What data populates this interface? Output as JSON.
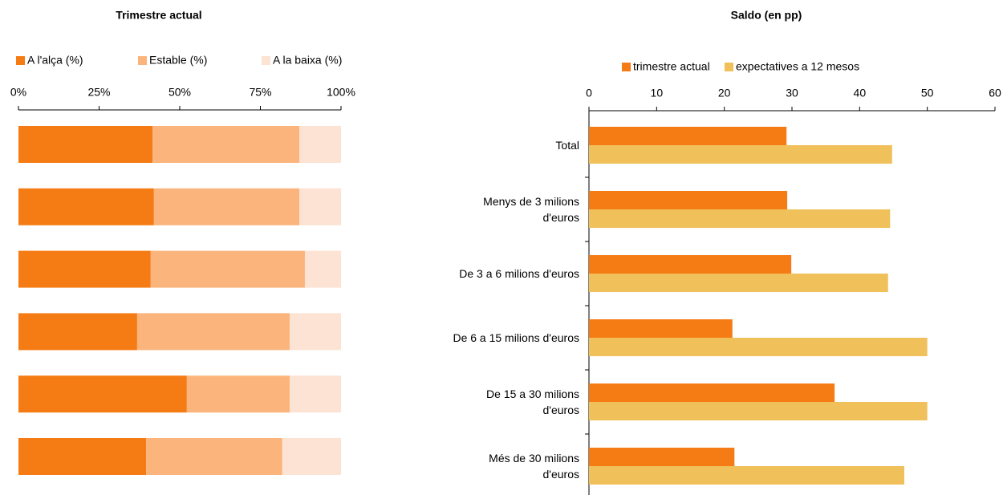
{
  "chart_data": [
    {
      "type": "stacked_barh",
      "title": "Trimestre actual",
      "categories": [
        null,
        null,
        null,
        null,
        null,
        null
      ],
      "series": [
        {
          "name": "A l'alça (%)",
          "color": "#f57c14",
          "values": [
            41.6,
            42.0,
            41.0,
            36.8,
            52.2,
            39.6
          ]
        },
        {
          "name": "Estable (%)",
          "color": "#fbb57c",
          "values": [
            45.5,
            45.1,
            47.8,
            47.3,
            31.9,
            42.2
          ]
        },
        {
          "name": "A la baixa (%)",
          "color": "#fde3d3",
          "values": [
            12.9,
            12.9,
            11.2,
            15.9,
            15.9,
            18.2
          ]
        }
      ],
      "xlim": [
        0,
        100
      ],
      "xticks": [
        {
          "value": 0,
          "label": "0%"
        },
        {
          "value": 25,
          "label": "25%"
        },
        {
          "value": 50,
          "label": "50%"
        },
        {
          "value": 75,
          "label": "75%"
        },
        {
          "value": 100,
          "label": "100%"
        }
      ],
      "legend": "top"
    },
    {
      "type": "barh",
      "title": "Saldo (en pp)",
      "categories": [
        "Total",
        "Menys de 3 milions d'euros",
        "De 3 a 6 milions d'euros",
        "De 6 a 15 milions d'euros",
        "De 15 a 30 milions d'euros",
        "Més de 30 milions d'euros"
      ],
      "series": [
        {
          "name": "trimestre actual",
          "color": "#f57c14",
          "values": [
            29.2,
            29.3,
            29.9,
            21.2,
            36.3,
            21.5
          ]
        },
        {
          "name": "expectatives a 12 mesos",
          "color": "#f0c05a",
          "values": [
            44.8,
            44.5,
            44.2,
            50,
            50,
            46.6
          ]
        }
      ],
      "xlim": [
        0,
        60
      ],
      "xticks": [
        0,
        10,
        20,
        30,
        40,
        50,
        60
      ],
      "legend": "top"
    }
  ]
}
